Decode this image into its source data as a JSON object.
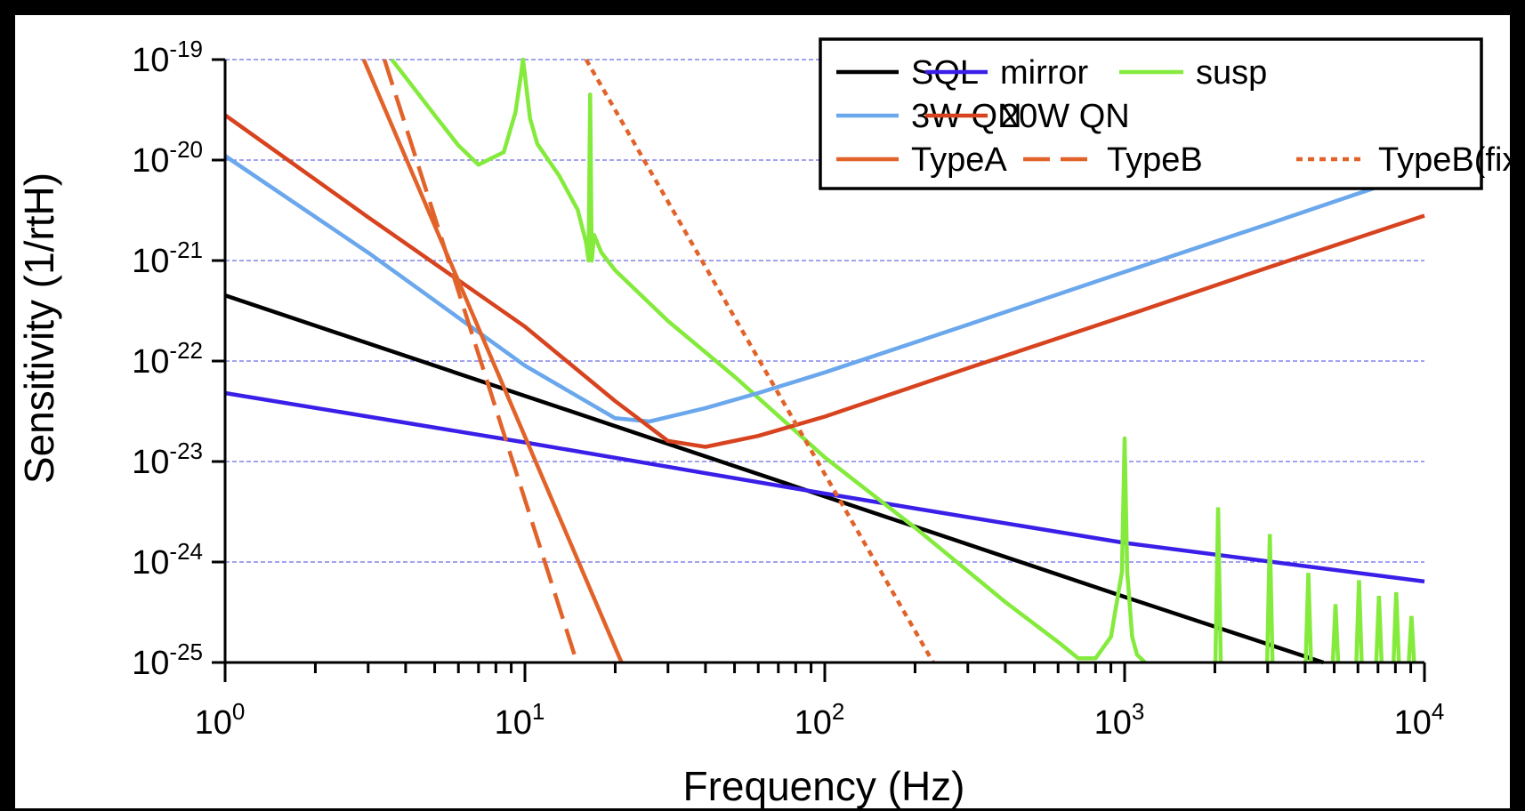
{
  "chart_data": {
    "type": "line",
    "xlabel": "Frequency (Hz)",
    "ylabel": "Sensitivity (1/rtH)",
    "x_scale": "log",
    "y_scale": "log",
    "xlim": [
      1,
      10000
    ],
    "ylim": [
      1e-25,
      1e-19
    ],
    "x_ticks": [
      {
        "value": 1,
        "base": "10",
        "exp": "0"
      },
      {
        "value": 10,
        "base": "10",
        "exp": "1"
      },
      {
        "value": 100,
        "base": "10",
        "exp": "2"
      },
      {
        "value": 1000,
        "base": "10",
        "exp": "3"
      },
      {
        "value": 10000,
        "base": "10",
        "exp": "4"
      }
    ],
    "y_ticks": [
      {
        "value": 1e-19,
        "base": "10",
        "exp": "-19"
      },
      {
        "value": 1e-20,
        "base": "10",
        "exp": "-20"
      },
      {
        "value": 1e-21,
        "base": "10",
        "exp": "-21"
      },
      {
        "value": 1e-22,
        "base": "10",
        "exp": "-22"
      },
      {
        "value": 1e-23,
        "base": "10",
        "exp": "-23"
      },
      {
        "value": 1e-24,
        "base": "10",
        "exp": "-24"
      },
      {
        "value": 1e-25,
        "base": "10",
        "exp": "-25"
      }
    ],
    "grid": "horizontal dashed at decades",
    "legend_position": "top-right",
    "series": [
      {
        "name": "SQL",
        "color": "#000000",
        "style": "solid",
        "x": [
          1,
          10,
          100,
          1000,
          4600
        ],
        "y": [
          4.5e-22,
          4.5e-23,
          4.5e-24,
          4.5e-25,
          1e-25
        ]
      },
      {
        "name": "mirror",
        "color": "#3a1fe8",
        "style": "solid",
        "x": [
          1,
          10,
          100,
          1000,
          10000
        ],
        "y": [
          4.8e-23,
          1.55e-23,
          4.8e-24,
          1.55e-24,
          6.4e-25
        ]
      },
      {
        "name": "susp",
        "color": "#84ea3c",
        "style": "solid",
        "x": [
          3.6,
          5,
          6,
          7,
          8.5,
          9.3,
          9.7,
          9.85,
          10,
          10.4,
          11,
          13,
          15,
          16,
          16.3,
          16.5,
          16.7,
          17,
          18,
          20,
          30,
          50,
          100,
          200,
          400,
          600,
          700,
          800,
          900,
          980,
          1000,
          1020,
          1060,
          1100,
          1170
        ],
        "y": [
          1e-19,
          2.8e-20,
          1.4e-20,
          9e-21,
          1.2e-20,
          3e-20,
          7e-20,
          1e-19,
          7e-20,
          2.6e-20,
          1.45e-20,
          7e-21,
          3.2e-21,
          1.5e-21,
          1e-21,
          4.5e-20,
          1e-21,
          1.8e-21,
          1.2e-21,
          8e-22,
          2.5e-22,
          7e-23,
          1.1e-23,
          2.2e-24,
          4e-25,
          1.6e-25,
          1.1e-25,
          1.1e-25,
          1.8e-25,
          8e-25,
          1.7e-23,
          8e-25,
          1.8e-25,
          1.2e-25,
          1e-25
        ]
      },
      {
        "name": "3W QN",
        "color": "#6aa7ec",
        "style": "solid",
        "x": [
          1,
          3,
          10,
          20,
          26,
          40,
          60,
          100,
          300,
          1000,
          3000,
          7500
        ],
        "y": [
          1.1e-20,
          1.2e-21,
          9e-23,
          2.7e-23,
          2.5e-23,
          3.4e-23,
          4.8e-23,
          7.7e-23,
          2.3e-22,
          7.7e-22,
          2.3e-21,
          5.8e-21
        ]
      },
      {
        "name": "20W QN",
        "color": "#d8431f",
        "style": "solid",
        "x": [
          1,
          3,
          10,
          20,
          30,
          40,
          60,
          100,
          300,
          1000,
          3000,
          10000
        ],
        "y": [
          2.8e-20,
          2.7e-21,
          2.2e-22,
          4e-23,
          1.6e-23,
          1.4e-23,
          1.8e-23,
          2.8e-23,
          8.5e-23,
          2.8e-22,
          8.5e-22,
          2.8e-21
        ]
      },
      {
        "name": "TypeA",
        "color": "#e2632a",
        "style": "solid",
        "x": [
          2.9,
          21
        ],
        "y": [
          1e-19,
          1e-25
        ]
      },
      {
        "name": "TypeB",
        "color": "#e2632a",
        "style": "dashed",
        "x": [
          3.4,
          14.9
        ],
        "y": [
          1e-19,
          1e-25
        ]
      },
      {
        "name": "TypeB(fix)",
        "color": "#e2632a",
        "style": "dotted",
        "x": [
          16,
          230
        ],
        "y": [
          1e-19,
          1e-25
        ]
      }
    ],
    "legend_rows": [
      [
        "SQL",
        "mirror",
        "susp"
      ],
      [
        "3W QN",
        "20W QN"
      ],
      [
        "TypeA",
        "TypeB",
        "TypeB(fix)"
      ]
    ]
  }
}
